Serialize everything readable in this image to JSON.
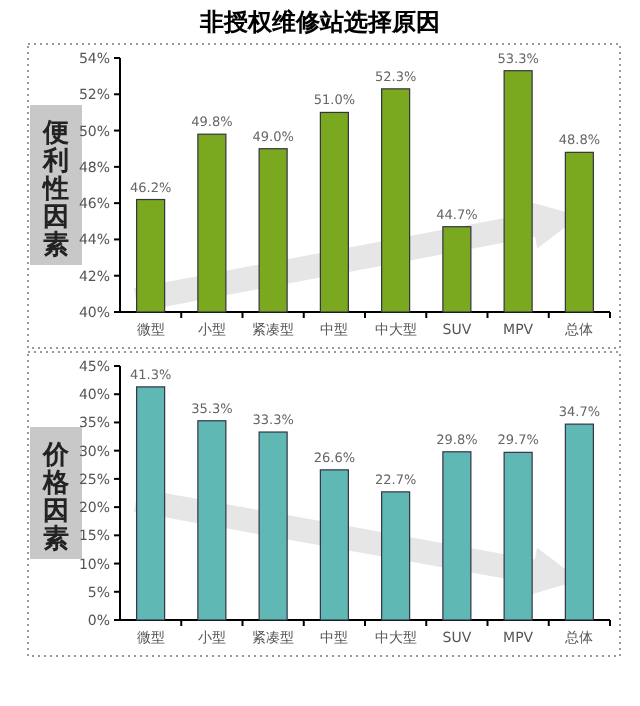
{
  "chart_data": [
    {
      "type": "bar",
      "title": "非授权维修站选择原因",
      "ylabel": "便利性因素",
      "categories": [
        "微型",
        "小型",
        "紧凑型",
        "中型",
        "中大型",
        "SUV",
        "MPV",
        "总体"
      ],
      "values": [
        46.2,
        49.8,
        49.0,
        51.0,
        52.3,
        44.7,
        53.3,
        48.8
      ],
      "value_labels": [
        "46.2%",
        "49.8%",
        "49.0%",
        "51.0%",
        "52.3%",
        "44.7%",
        "53.3%",
        "48.8%"
      ],
      "color": "#7aa81e",
      "ylim": [
        40,
        54
      ],
      "yticks": [
        {
          "value": 40,
          "label": "40%"
        },
        {
          "value": 42,
          "label": "42%"
        },
        {
          "value": 44,
          "label": "44%"
        },
        {
          "value": 46,
          "label": "46%"
        },
        {
          "value": 48,
          "label": "48%"
        },
        {
          "value": 50,
          "label": "50%"
        },
        {
          "value": 52,
          "label": "52%"
        },
        {
          "value": 54,
          "label": "54%"
        }
      ]
    },
    {
      "type": "bar",
      "ylabel": "价格因素",
      "categories": [
        "微型",
        "小型",
        "紧凑型",
        "中型",
        "中大型",
        "SUV",
        "MPV",
        "总体"
      ],
      "values": [
        41.3,
        35.3,
        33.3,
        26.6,
        22.7,
        29.8,
        29.7,
        34.7
      ],
      "value_labels": [
        "41.3%",
        "35.3%",
        "33.3%",
        "26.6%",
        "22.7%",
        "29.8%",
        "29.7%",
        "34.7%"
      ],
      "color": "#5fb8b4",
      "ylim": [
        0,
        45
      ],
      "yticks": [
        {
          "value": 0,
          "label": "0%"
        },
        {
          "value": 5,
          "label": "5%"
        },
        {
          "value": 10,
          "label": "10%"
        },
        {
          "value": 15,
          "label": "15%"
        },
        {
          "value": 20,
          "label": "20%"
        },
        {
          "value": 25,
          "label": "25%"
        },
        {
          "value": 30,
          "label": "30%"
        },
        {
          "value": 35,
          "label": "35%"
        },
        {
          "value": 40,
          "label": "40%"
        },
        {
          "value": 45,
          "label": "45%"
        }
      ]
    }
  ]
}
